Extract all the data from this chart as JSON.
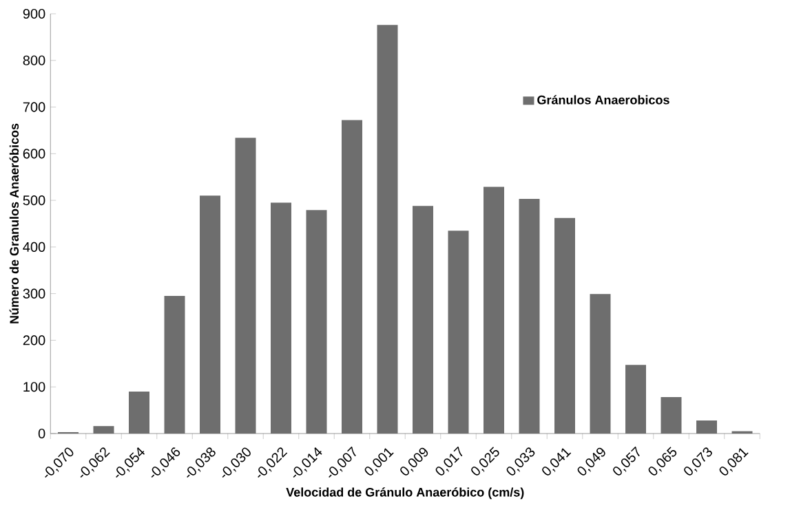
{
  "chart_data": {
    "type": "bar",
    "xlabel": "Velocidad de Gránulo Anaeróbico (cm/s)",
    "ylabel": "Número de Granulos Anaeróbicos",
    "categories": [
      "-0,070",
      "-0,062",
      "-0,054",
      "-0,046",
      "-0,038",
      "-0,030",
      "-0,022",
      "-0,014",
      "-0,007",
      "0,001",
      "0,009",
      "0,017",
      "0,025",
      "0,033",
      "0,041",
      "0,049",
      "0,057",
      "0,065",
      "0,073",
      "0,081"
    ],
    "series": [
      {
        "name": "Gránulos Anaerobicos",
        "color": "#6e6e6e",
        "values": [
          3,
          16,
          90,
          295,
          510,
          634,
          495,
          479,
          672,
          876,
          488,
          435,
          529,
          503,
          462,
          299,
          147,
          78,
          28,
          5
        ]
      }
    ],
    "ylim": [
      0,
      900
    ],
    "yticks": [
      0,
      100,
      200,
      300,
      400,
      500,
      600,
      700,
      800,
      900
    ],
    "grid": false,
    "legend": "top right"
  }
}
